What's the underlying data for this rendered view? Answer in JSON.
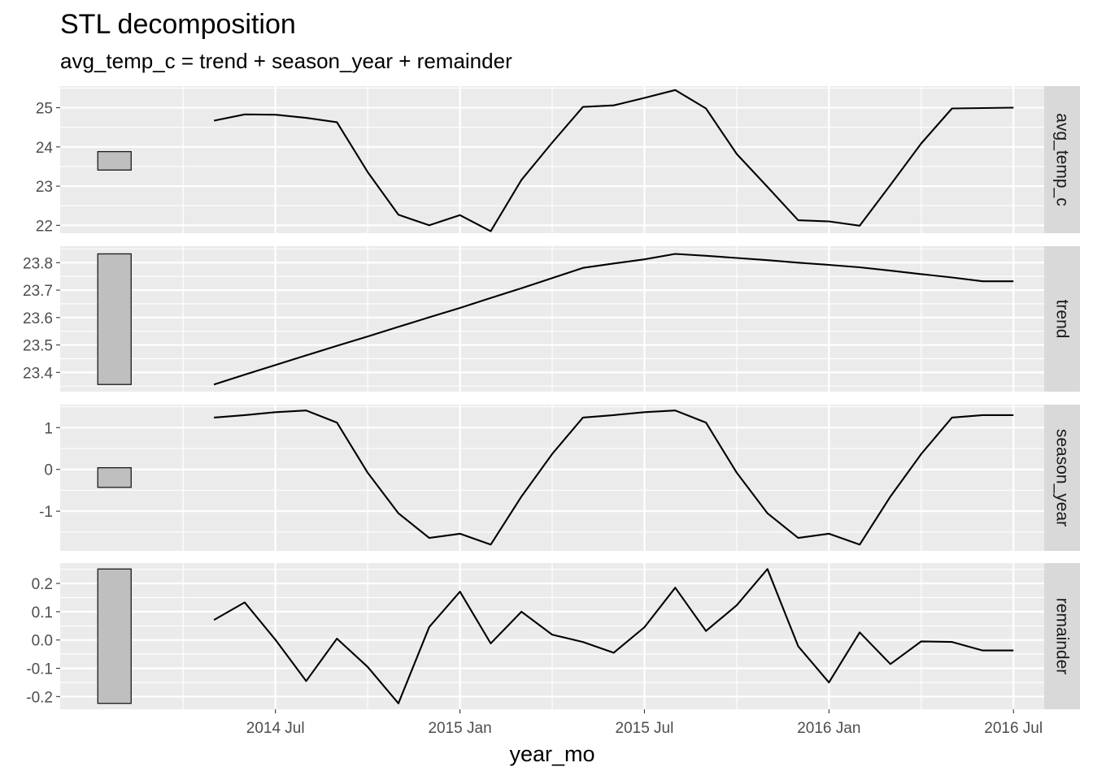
{
  "title": "STL decomposition",
  "subtitle": "avg_temp_c = trend + season_year + remainder",
  "chart_data": {
    "type": "line",
    "title": "STL decomposition",
    "subtitle": "avg_temp_c = trend + season_year + remainder",
    "xlabel": "year_mo",
    "ylabel": "",
    "x": [
      "2014-05",
      "2014-06",
      "2014-07",
      "2014-08",
      "2014-09",
      "2014-10",
      "2014-11",
      "2014-12",
      "2015-01",
      "2015-02",
      "2015-03",
      "2015-04",
      "2015-05",
      "2015-06",
      "2015-07",
      "2015-08",
      "2015-09",
      "2015-10",
      "2015-11",
      "2015-12",
      "2016-01",
      "2016-02",
      "2016-03",
      "2016-04",
      "2016-05",
      "2016-06",
      "2016-07"
    ],
    "x_ticks": [
      {
        "date": "2014-07",
        "label": "2014 Jul"
      },
      {
        "date": "2015-01",
        "label": "2015 Jan"
      },
      {
        "date": "2015-07",
        "label": "2015 Jul"
      },
      {
        "date": "2016-01",
        "label": "2016 Jan"
      },
      {
        "date": "2016-07",
        "label": "2016 Jul"
      }
    ],
    "xlim": [
      "2013-12",
      "2016-08"
    ],
    "grid": true,
    "panels": [
      {
        "name": "avg_temp_c",
        "ylim": [
          21.8,
          25.55
        ],
        "yticks": [
          22,
          23,
          24,
          25
        ],
        "ytick_labels": [
          "22",
          "23",
          "24",
          "25"
        ],
        "scale_bar": [
          23.41,
          23.88
        ],
        "values": [
          24.67,
          24.83,
          24.82,
          24.74,
          24.63,
          23.36,
          22.27,
          22.0,
          22.26,
          21.85,
          23.16,
          24.11,
          25.02,
          25.06,
          25.25,
          25.45,
          24.98,
          23.82,
          22.98,
          22.13,
          22.1,
          21.99,
          23.03,
          24.09,
          24.98,
          24.99,
          25.0
        ]
      },
      {
        "name": "trend",
        "ylim": [
          23.33,
          23.86
        ],
        "yticks": [
          23.4,
          23.5,
          23.6,
          23.7,
          23.8
        ],
        "ytick_labels": [
          "23.4",
          "23.5",
          "23.6",
          "23.7",
          "23.8"
        ],
        "scale_bar": [
          23.356,
          23.832
        ],
        "values": [
          23.356,
          23.392,
          23.427,
          23.462,
          23.497,
          23.531,
          23.566,
          23.601,
          23.635,
          23.671,
          23.707,
          23.744,
          23.781,
          23.797,
          23.812,
          23.832,
          23.825,
          23.817,
          23.809,
          23.8,
          23.792,
          23.783,
          23.771,
          23.758,
          23.746,
          23.732,
          23.732
        ]
      },
      {
        "name": "season_year",
        "ylim": [
          -1.95,
          1.55
        ],
        "yticks": [
          -1,
          0,
          1
        ],
        "ytick_labels": [
          "-1",
          "0",
          "1"
        ],
        "scale_bar": [
          -0.43,
          0.04
        ],
        "values": [
          1.24,
          1.3,
          1.37,
          1.41,
          1.12,
          -0.08,
          -1.05,
          -1.64,
          -1.54,
          -1.8,
          -0.65,
          0.37,
          1.24,
          1.3,
          1.37,
          1.41,
          1.12,
          -0.08,
          -1.05,
          -1.64,
          -1.54,
          -1.8,
          -0.65,
          0.37,
          1.24,
          1.3,
          1.3
        ]
      },
      {
        "name": "remainder",
        "ylim": [
          -0.245,
          0.272
        ],
        "yticks": [
          -0.2,
          -0.1,
          0.0,
          0.1,
          0.2
        ],
        "ytick_labels": [
          "-0.2",
          "-0.1",
          "0.0",
          "0.1",
          "0.2"
        ],
        "scale_bar": [
          -0.224,
          0.251
        ],
        "values": [
          0.071,
          0.133,
          0.001,
          -0.145,
          0.005,
          -0.095,
          -0.224,
          0.046,
          0.171,
          -0.012,
          0.1,
          0.019,
          -0.007,
          -0.045,
          0.045,
          0.185,
          0.032,
          0.123,
          0.251,
          -0.022,
          -0.15,
          0.027,
          -0.085,
          -0.005,
          -0.007,
          -0.037,
          -0.037
        ]
      }
    ]
  },
  "colors": {
    "panel_bg": "#ebebeb",
    "grid_major": "#ffffff",
    "strip_bg": "#d9d9d9",
    "line": "#000000",
    "scale_bar_fill": "#bfbfbf"
  }
}
